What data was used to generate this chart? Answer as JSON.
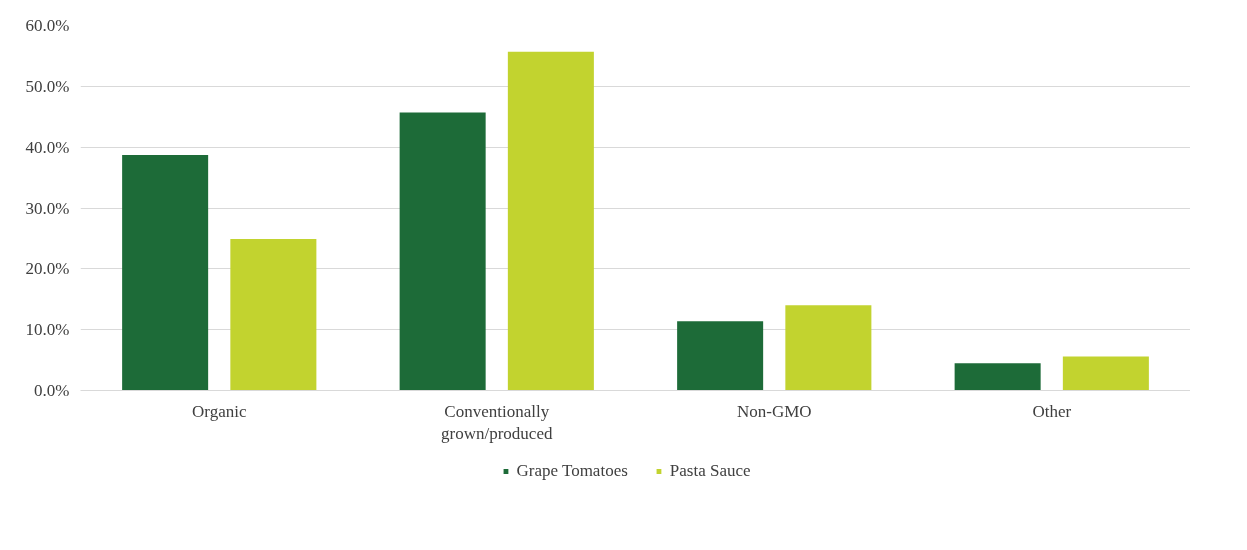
{
  "chart_data": {
    "type": "bar",
    "categories": [
      "Organic",
      "Conventionally grown/produced",
      "Non-GMO",
      "Other"
    ],
    "series": [
      {
        "name": "Grape Tomatoes",
        "color": "#1d6b38",
        "values": [
          38.7,
          45.7,
          11.4,
          4.5
        ]
      },
      {
        "name": "Pasta Sauce",
        "color": "#c2d32f",
        "values": [
          24.9,
          55.7,
          14.0,
          5.6
        ]
      }
    ],
    "ylim": [
      0,
      60
    ],
    "yticks": [
      {
        "value": 0,
        "label": "0.0%"
      },
      {
        "value": 10,
        "label": "10.0%"
      },
      {
        "value": 20,
        "label": "20.0%"
      },
      {
        "value": 30,
        "label": "30.0%"
      },
      {
        "value": 40,
        "label": "40.0%"
      },
      {
        "value": 50,
        "label": "50.0%"
      },
      {
        "value": 60,
        "label": "60.0%"
      }
    ],
    "grid": "y",
    "legend": "bottom"
  }
}
